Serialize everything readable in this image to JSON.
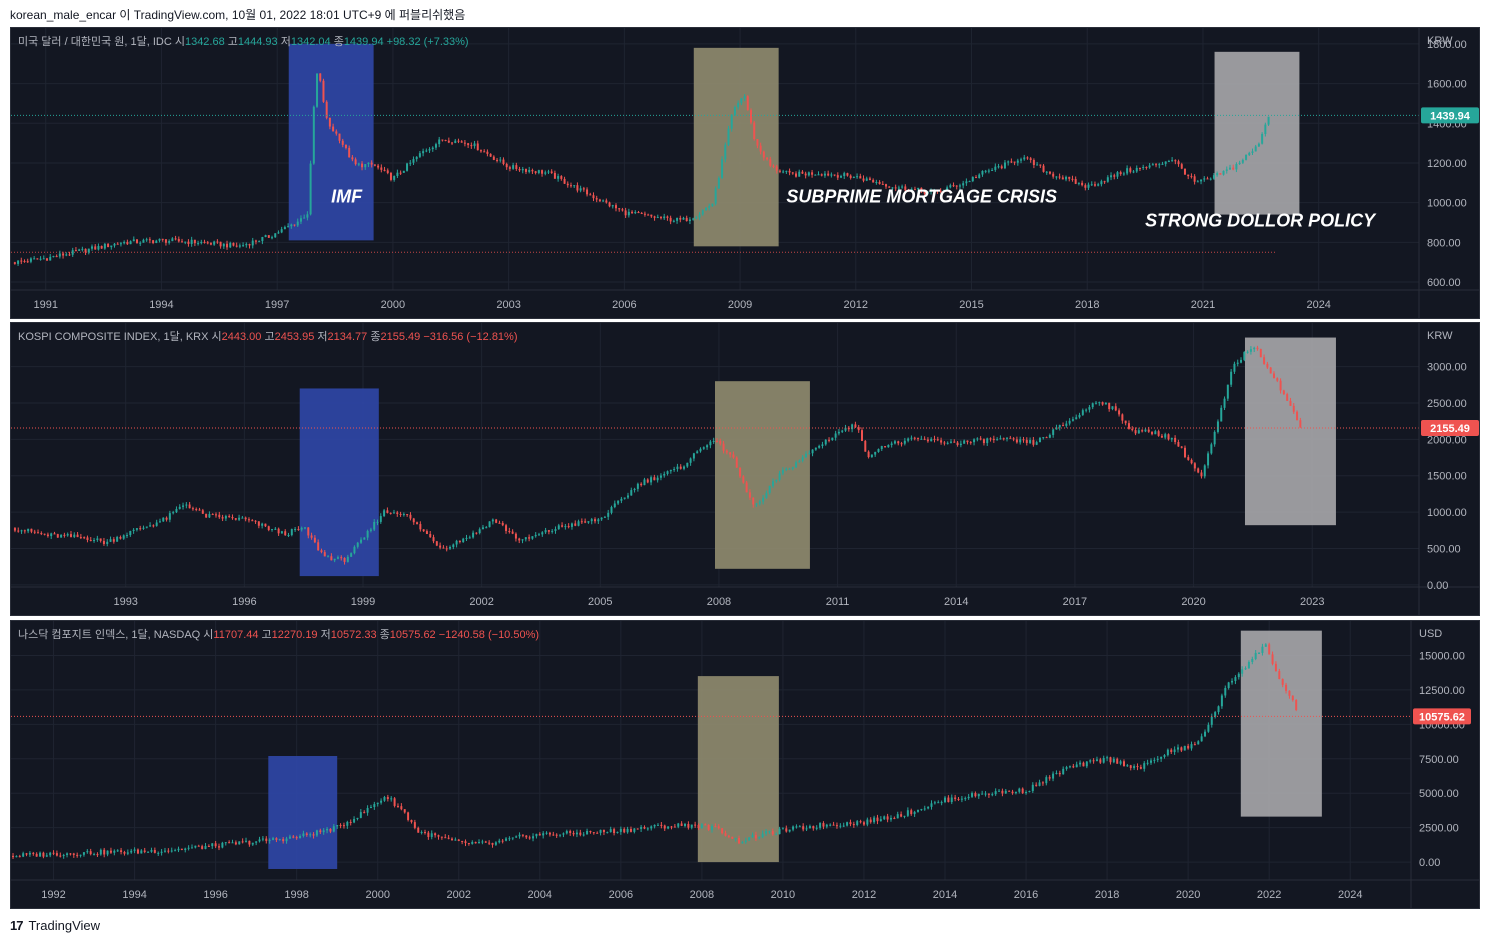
{
  "header": {
    "text": "korean_male_encar 이 TradingView.com, 10월 01, 2022 18:01 UTC+9 에 퍼블리쉬했음"
  },
  "footer": {
    "logo": "17",
    "brand": "TradingView"
  },
  "colors": {
    "background": "#131722",
    "up": "#26a69a",
    "down": "#ef5350",
    "text": "#b2b5be",
    "grid": "#2a2e39"
  },
  "chart_data": [
    {
      "type": "candlestick",
      "title": "미국 달러 / 대한민국 원, 1달, IDC",
      "ohlc": {
        "o_label": "시",
        "o": "1342.68",
        "h_label": "고",
        "h": "1444.93",
        "l_label": "저",
        "l": "1342.04",
        "c_label": "종",
        "c": "1439.94",
        "change": "+98.32 (+7.33%)"
      },
      "currency": "KRW",
      "last_price": "1439.94",
      "last_color": "#26a69a",
      "x_ticks": [
        "1991",
        "1994",
        "1997",
        "2000",
        "2003",
        "2006",
        "2009",
        "2012",
        "2015",
        "2018",
        "2021",
        "2024"
      ],
      "xlim": [
        1990.1,
        2026.6
      ],
      "y_ticks": [
        "600.00",
        "800.00",
        "1000.00",
        "1200.00",
        "1400.00",
        "1600.00",
        "1800.00"
      ],
      "ylim": [
        560,
        1880
      ],
      "reference_line": 750,
      "series": {
        "x": [
          1990.2,
          1991,
          1992,
          1993,
          1994,
          1995,
          1996,
          1996.8,
          1997.5,
          1997.8,
          1997.95,
          1998.05,
          1998.3,
          1998.6,
          1999,
          1999.5,
          2000,
          2000.8,
          2001.3,
          2002,
          2003,
          2004,
          2005,
          2005.5,
          2006,
          2007,
          2007.5,
          2007.9,
          2008.3,
          2008.8,
          2009.1,
          2009.4,
          2009.8,
          2010.3,
          2011,
          2012,
          2013,
          2014,
          2014.8,
          2015.3,
          2016,
          2016.3,
          2017,
          2018,
          2019,
          2019.6,
          2020.2,
          2020.8,
          2021.2,
          2021.8,
          2022.4,
          2022.7
        ],
        "y": [
          700,
          720,
          760,
          800,
          810,
          800,
          780,
          830,
          900,
          950,
          1480,
          1680,
          1400,
          1330,
          1190,
          1190,
          1120,
          1260,
          1320,
          1300,
          1180,
          1150,
          1050,
          1000,
          950,
          920,
          910,
          940,
          1000,
          1450,
          1550,
          1300,
          1180,
          1140,
          1150,
          1130,
          1080,
          1050,
          1100,
          1150,
          1200,
          1230,
          1150,
          1080,
          1160,
          1180,
          1220,
          1100,
          1120,
          1180,
          1280,
          1440
        ]
      },
      "boxes": [
        {
          "x0": 1997.3,
          "x1": 1999.5,
          "y0": 810,
          "y1": 1800,
          "color": "#2f47a6"
        },
        {
          "x0": 2007.8,
          "x1": 2010.0,
          "y0": 780,
          "y1": 1780,
          "color": "#8e8a6e"
        },
        {
          "x0": 2021.3,
          "x1": 2023.5,
          "y0": 940,
          "y1": 1760,
          "color": "#a5a5a8"
        }
      ],
      "annotations": [
        {
          "text": "IMF",
          "x": 1998.4,
          "y": 1000
        },
        {
          "text": "SUBPRIME MORTGAGE CRISIS",
          "x": 2010.2,
          "y": 1000
        },
        {
          "text": "STRONG DOLLOR POLICY",
          "x": 2019.5,
          "y": 880
        }
      ]
    },
    {
      "type": "candlestick",
      "title": "KOSPI COMPOSITE INDEX, 1달, KRX",
      "ohlc": {
        "o_label": "시",
        "o": "2443.00",
        "h_label": "고",
        "h": "2453.95",
        "l_label": "저",
        "l": "2134.77",
        "c_label": "종",
        "c": "2155.49",
        "change": "−316.56 (−12.81%)"
      },
      "currency": "KRW",
      "last_price": "2155.49",
      "last_color": "#ef5350",
      "x_ticks": [
        "1993",
        "1996",
        "1999",
        "2002",
        "2005",
        "2008",
        "2011",
        "2014",
        "2017",
        "2020",
        "2023"
      ],
      "xlim": [
        1990.1,
        2025.7
      ],
      "y_ticks": [
        "0.00",
        "500.00",
        "1000.00",
        "1500.00",
        "2000.00",
        "2500.00",
        "3000.00"
      ],
      "ylim": [
        -30,
        3600
      ],
      "series": {
        "x": [
          1990.2,
          1991,
          1992,
          1992.5,
          1993,
          1994,
          1994.5,
          1995,
          1996,
          1997,
          1997.5,
          1998,
          1998.5,
          1999,
          1999.5,
          2000,
          2001,
          2001.8,
          2002.3,
          2003,
          2004,
          2005,
          2006,
          2007,
          2007.8,
          2008.3,
          2008.8,
          2009,
          2009.5,
          2010,
          2011,
          2011.5,
          2011.8,
          2012,
          2013,
          2014,
          2015,
          2016,
          2017,
          2017.6,
          2018,
          2018.5,
          2019,
          2019.5,
          2020.2,
          2020.6,
          2021,
          2021.5,
          2022,
          2022.5,
          2022.7
        ],
        "y": [
          780,
          680,
          650,
          580,
          700,
          900,
          1120,
          950,
          900,
          700,
          780,
          400,
          330,
          620,
          1000,
          1000,
          500,
          700,
          900,
          600,
          800,
          900,
          1400,
          1600,
          2000,
          1800,
          1150,
          1100,
          1500,
          1700,
          2100,
          2200,
          1700,
          1900,
          2000,
          1950,
          2000,
          1950,
          2300,
          2550,
          2400,
          2100,
          2100,
          2000,
          1480,
          2200,
          3000,
          3300,
          2900,
          2400,
          2155
        ]
      },
      "boxes": [
        {
          "x0": 1997.4,
          "x1": 1999.4,
          "y0": 120,
          "y1": 2700,
          "color": "#2f47a6"
        },
        {
          "x0": 2007.9,
          "x1": 2010.3,
          "y0": 220,
          "y1": 2800,
          "color": "#8e8a6e"
        },
        {
          "x0": 2021.3,
          "x1": 2023.6,
          "y0": 820,
          "y1": 3400,
          "color": "#a5a5a8"
        }
      ],
      "annotations": []
    },
    {
      "type": "candlestick",
      "title": "나스닥 컴포지트 인덱스, 1달, NASDAQ",
      "ohlc": {
        "o_label": "시",
        "o": "11707.44",
        "h_label": "고",
        "h": "12270.19",
        "l_label": "저",
        "l": "10572.33",
        "c_label": "종",
        "c": "10575.62",
        "change": "−1240.58 (−10.50%)"
      },
      "currency": "USD",
      "last_price": "10575.62",
      "last_color": "#ef5350",
      "x_ticks": [
        "1992",
        "1994",
        "1996",
        "1998",
        "2000",
        "2002",
        "2004",
        "2006",
        "2008",
        "2010",
        "2012",
        "2014",
        "2016",
        "2018",
        "2020",
        "2022",
        "2024"
      ],
      "xlim": [
        1990.95,
        2025.5
      ],
      "y_ticks": [
        "0.00",
        "2500.00",
        "5000.00",
        "7500.00",
        "10000.00",
        "12500.00",
        "15000.00"
      ],
      "ylim": [
        -1300,
        17500
      ],
      "series": {
        "x": [
          1991,
          1992,
          1993,
          1994,
          1995,
          1996,
          1997,
          1998,
          1999,
          1999.6,
          2000.2,
          2000.6,
          2001,
          2001.5,
          2002,
          2002.8,
          2003.5,
          2004,
          2005,
          2006,
          2007,
          2007.8,
          2008.4,
          2008.9,
          2009.5,
          2010,
          2011,
          2012,
          2013,
          2014,
          2015,
          2016,
          2017,
          2018,
          2018.8,
          2019.5,
          2020.2,
          2020.6,
          2021,
          2021.5,
          2021.9,
          2022.3,
          2022.6,
          2022.7
        ],
        "y": [
          450,
          600,
          700,
          750,
          900,
          1200,
          1500,
          1800,
          2500,
          3500,
          4800,
          3800,
          2200,
          1800,
          1400,
          1300,
          1800,
          2000,
          2100,
          2300,
          2600,
          2700,
          2400,
          1500,
          2000,
          2300,
          2700,
          2900,
          3500,
          4500,
          5000,
          5200,
          6800,
          7500,
          6800,
          8000,
          8500,
          10500,
          13000,
          14500,
          15800,
          13000,
          11500,
          10575
        ]
      },
      "boxes": [
        {
          "x0": 1997.3,
          "x1": 1999.0,
          "y0": -500,
          "y1": 7700,
          "color": "#2f47a6"
        },
        {
          "x0": 2007.9,
          "x1": 2009.9,
          "y0": 0,
          "y1": 13500,
          "color": "#8e8a6e"
        },
        {
          "x0": 2021.3,
          "x1": 2023.3,
          "y0": 3300,
          "y1": 16800,
          "color": "#a5a5a8"
        }
      ],
      "annotations": []
    }
  ]
}
